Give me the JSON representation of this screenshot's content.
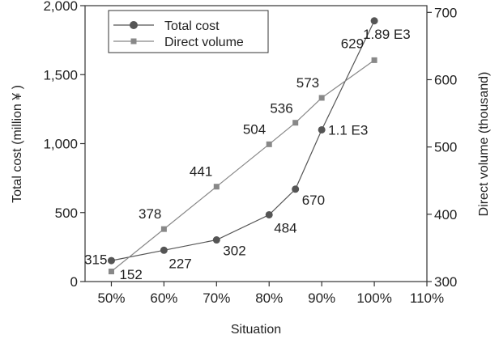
{
  "chart_data": {
    "type": "line",
    "xlabel": "Situation",
    "ylabel_left": "Total cost (million ¥ )",
    "ylabel_right": "Direct volume (thousand)",
    "x_ticks": [
      "50%",
      "60%",
      "70%",
      "80%",
      "90%",
      "100%",
      "110%"
    ],
    "x_range": [
      45,
      110
    ],
    "y_left_range": [
      0,
      2000
    ],
    "y_left_ticks": [
      "0",
      "500",
      "1,000",
      "1,500",
      "2,000"
    ],
    "y_right_range": [
      300,
      710
    ],
    "y_right_ticks": [
      "300",
      "400",
      "500",
      "600",
      "700"
    ],
    "legend_position": "top-left",
    "grid": false,
    "series": [
      {
        "name": "Total cost",
        "axis": "left",
        "marker": "circle",
        "color": "#555555",
        "x": [
          50,
          60,
          70,
          80,
          85,
          90,
          100
        ],
        "values": [
          152,
          227,
          302,
          484,
          670,
          1100,
          1890
        ],
        "labels": [
          "152",
          "227",
          "302",
          "484",
          "670",
          "1.1 E3",
          "1.89 E3"
        ]
      },
      {
        "name": "Direct volume",
        "axis": "right",
        "marker": "square",
        "color": "#888888",
        "x": [
          50,
          60,
          70,
          80,
          85,
          90,
          100
        ],
        "values": [
          315,
          378,
          441,
          504,
          536,
          573,
          629
        ],
        "labels": [
          "315",
          "378",
          "441",
          "504",
          "536",
          "573",
          "629"
        ]
      }
    ]
  }
}
